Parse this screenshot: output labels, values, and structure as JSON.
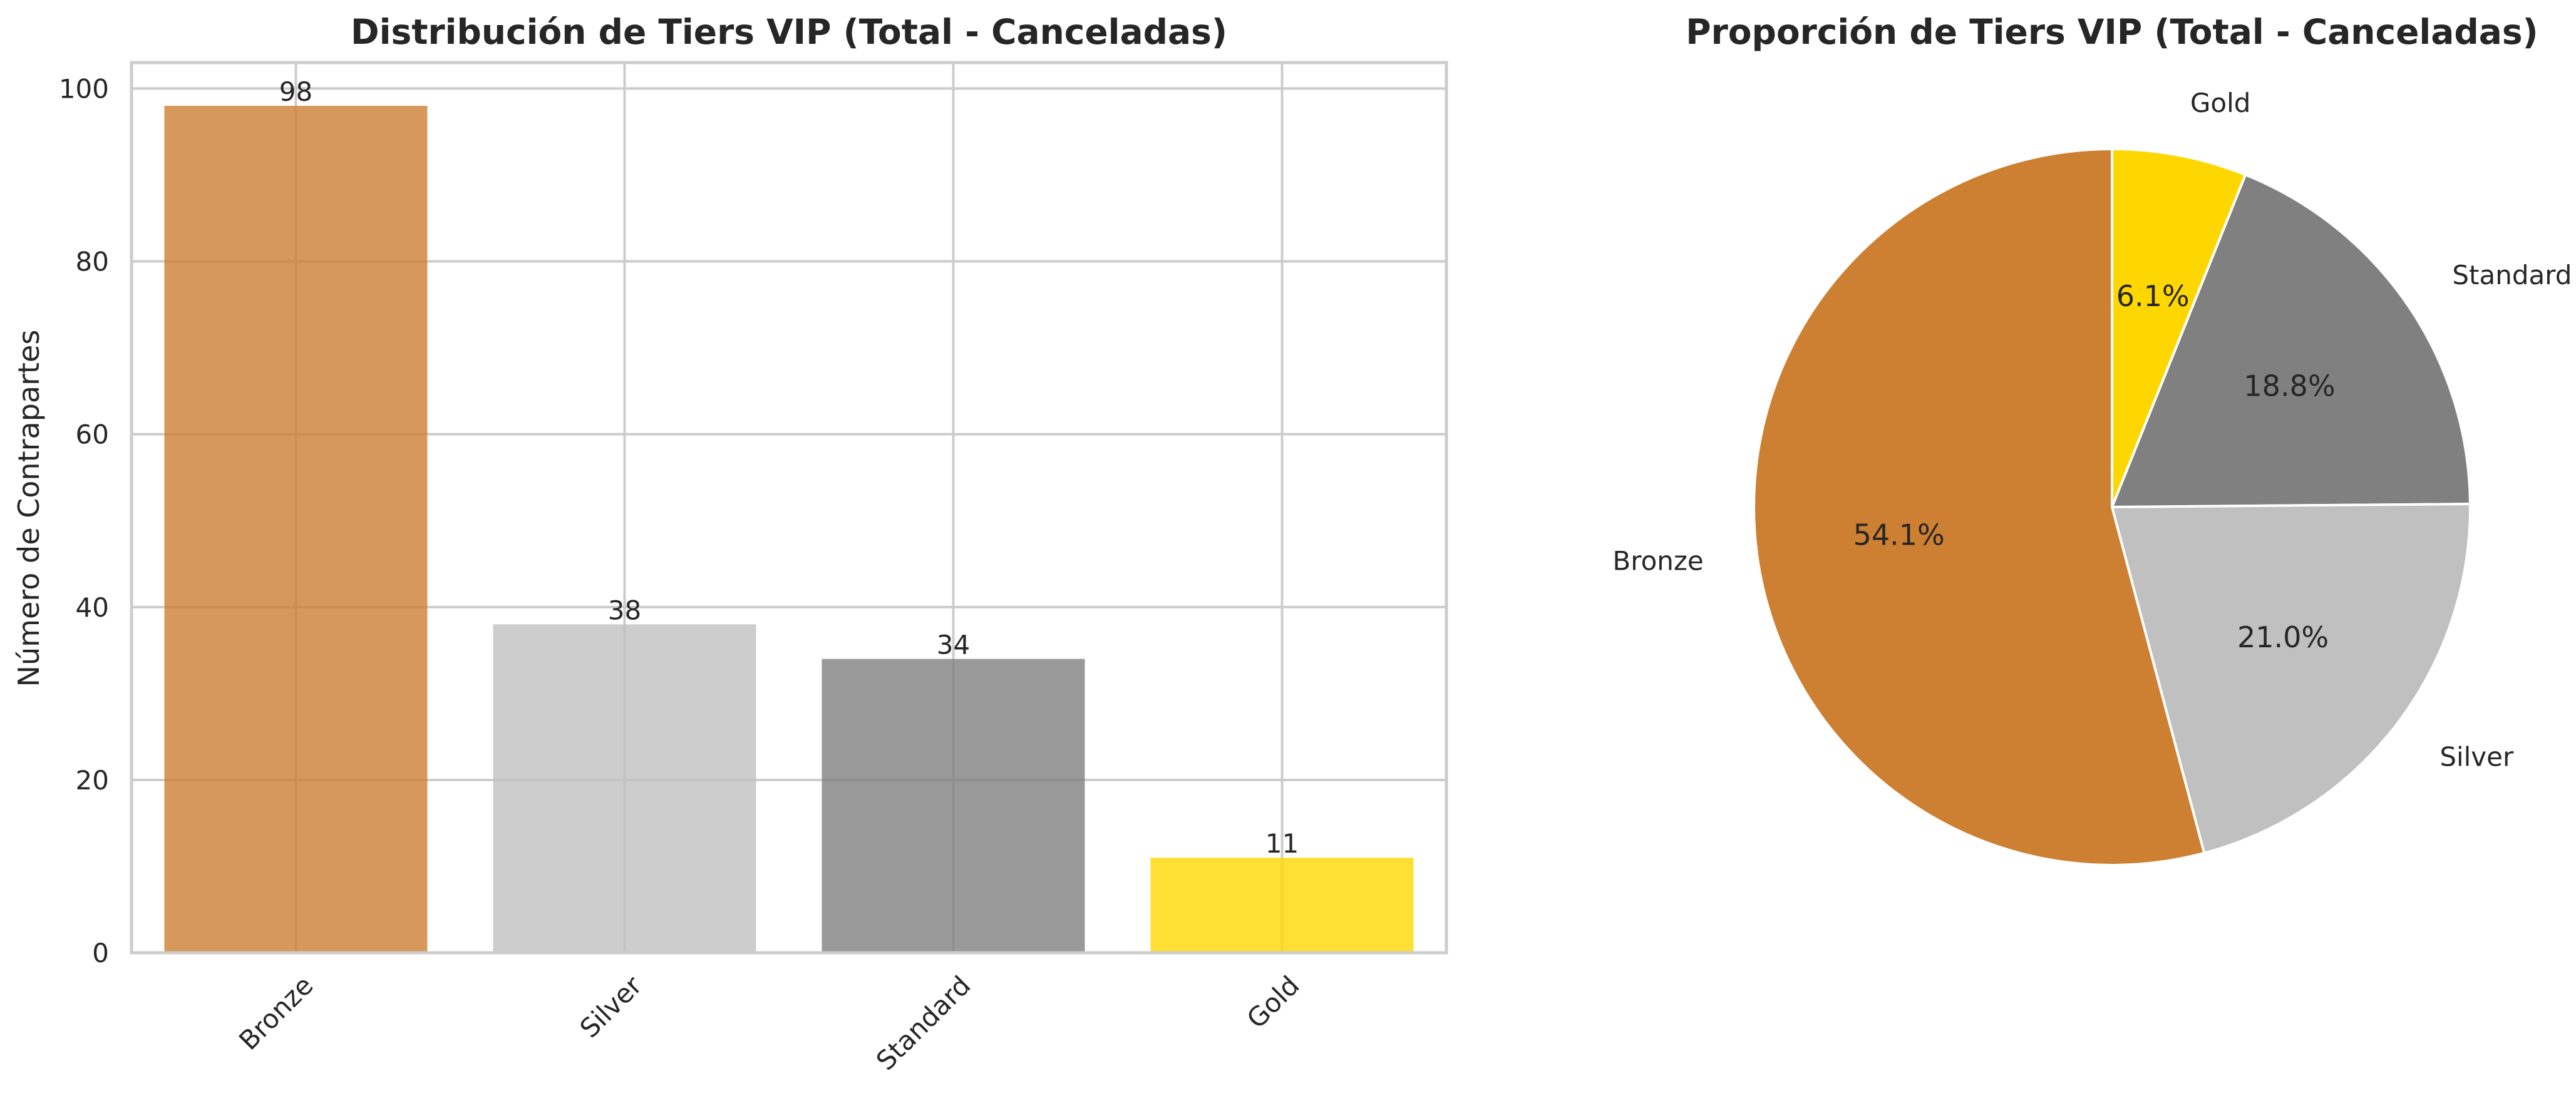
{
  "chart_data": [
    {
      "type": "bar",
      "title": "Distribución de Tiers VIP (Total - Canceladas)",
      "xlabel": "",
      "ylabel": "Número de Contrapartes",
      "categories": [
        "Bronze",
        "Silver",
        "Standard",
        "Gold"
      ],
      "values": [
        98,
        38,
        34,
        11
      ],
      "data_labels": [
        "98",
        "38",
        "34",
        "11"
      ],
      "colors": [
        "#cd7f32",
        "#c0c0c0",
        "#808080",
        "#ffd700"
      ],
      "ylim": [
        0,
        103
      ],
      "yticks": [
        0,
        20,
        40,
        60,
        80,
        100
      ],
      "ytick_labels": [
        "0",
        "20",
        "40",
        "60",
        "80",
        "100"
      ],
      "grid": true,
      "xtick_rotation": "45 degrees"
    },
    {
      "type": "pie",
      "title": "Proporción de Tiers VIP (Total - Canceladas)",
      "labels": [
        "Gold",
        "Standard",
        "Silver",
        "Bronze"
      ],
      "values": [
        11,
        34,
        38,
        98
      ],
      "percent_labels": [
        "6.1%",
        "18.8%",
        "21.0%",
        "54.1%"
      ],
      "colors": [
        "#ffd700",
        "#808080",
        "#c0c0c0",
        "#cd7f32"
      ],
      "direction": "clockwise",
      "start": "top"
    }
  ]
}
